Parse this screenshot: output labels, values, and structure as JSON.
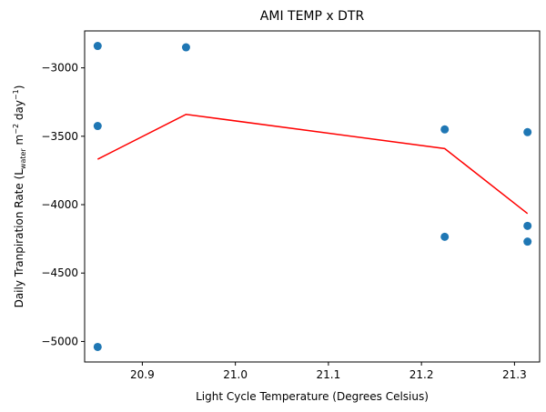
{
  "chart_data": {
    "type": "scatter",
    "title": "AMI TEMP x DTR",
    "xlabel": "Light Cycle Temperature (Degrees Celsius)",
    "ylabel_parts": {
      "main": "Daily Tranpiration Rate (L",
      "sub": "water",
      "mid": " m",
      "sup1": "−2",
      "mid2": " day",
      "sup2": "−1",
      "end": ")"
    },
    "xlim": [
      20.838,
      21.327
    ],
    "ylim": [
      -5150,
      -2730
    ],
    "xticks": [
      {
        "value": 20.9,
        "label": "20.9"
      },
      {
        "value": 21.0,
        "label": "21.0"
      },
      {
        "value": 21.1,
        "label": "21.1"
      },
      {
        "value": 21.2,
        "label": "21.2"
      },
      {
        "value": 21.3,
        "label": "21.3"
      }
    ],
    "yticks": [
      {
        "value": -3000,
        "label": "−3000"
      },
      {
        "value": -3500,
        "label": "−3500"
      },
      {
        "value": -4000,
        "label": "−4000"
      },
      {
        "value": -4500,
        "label": "−4500"
      },
      {
        "value": -5000,
        "label": "−5000"
      }
    ],
    "points": [
      {
        "x": 20.852,
        "y": -2840
      },
      {
        "x": 20.852,
        "y": -3425
      },
      {
        "x": 20.852,
        "y": -5040
      },
      {
        "x": 20.947,
        "y": -2850
      },
      {
        "x": 21.225,
        "y": -3450
      },
      {
        "x": 21.225,
        "y": -4235
      },
      {
        "x": 21.314,
        "y": -3470
      },
      {
        "x": 21.314,
        "y": -4155
      },
      {
        "x": 21.314,
        "y": -4270
      }
    ],
    "trend_line": [
      {
        "x": 20.852,
        "y": -3668
      },
      {
        "x": 20.947,
        "y": -3340
      },
      {
        "x": 21.225,
        "y": -3590
      },
      {
        "x": 21.314,
        "y": -4065
      }
    ],
    "colors": {
      "points": "#1f77b4",
      "trend_line": "#ff0000",
      "axes": "#000000"
    },
    "grid": false
  }
}
